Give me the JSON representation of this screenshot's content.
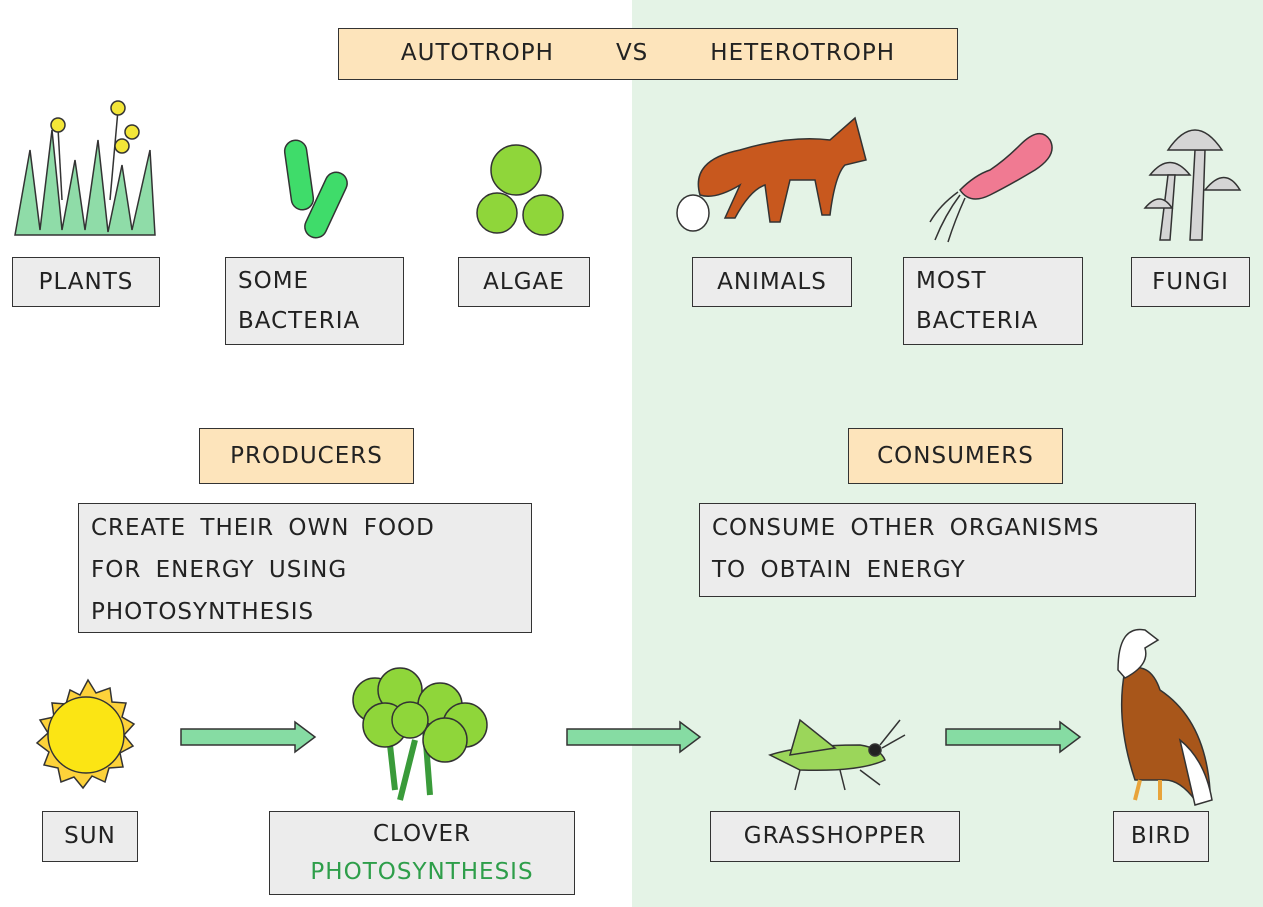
{
  "title": {
    "left": "AUTOTROPH",
    "middle": "VS",
    "right": "HETEROTROPH"
  },
  "autotrophs": [
    {
      "lines": [
        "PLANTS"
      ]
    },
    {
      "lines": [
        "SOME",
        "BACTERIA"
      ]
    },
    {
      "lines": [
        "ALGAE"
      ]
    }
  ],
  "heterotrophs": [
    {
      "lines": [
        "ANIMALS"
      ]
    },
    {
      "lines": [
        "MOST",
        "BACTERIA"
      ]
    },
    {
      "lines": [
        "FUNGI"
      ]
    }
  ],
  "producers": {
    "heading": "PRODUCERS",
    "description": [
      "CREATE THEIR OWN FOOD",
      "FOR ENERGY USING",
      "PHOTOSYNTHESIS"
    ]
  },
  "consumers": {
    "heading": "CONSUMERS",
    "description": [
      "CONSUME OTHER ORGANISMS",
      "TO OBTAIN ENERGY"
    ]
  },
  "food_chain": {
    "sun": "SUN",
    "clover": "CLOVER",
    "clover_process": "PHOTOSYNTHESIS",
    "grasshopper": "GRASSHOPPER",
    "bird": "BIRD"
  }
}
